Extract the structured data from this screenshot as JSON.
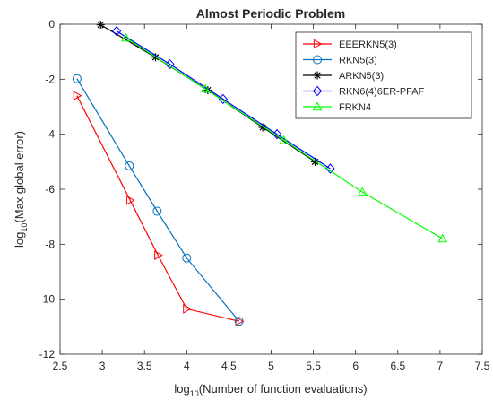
{
  "chart_data": {
    "type": "line",
    "title": "Almost Periodic Problem",
    "xlabel": {
      "prefix": "log",
      "sub": "10",
      "suffix": "(Number of function evaluations)"
    },
    "ylabel": {
      "prefix": "log",
      "sub": "10",
      "suffix": "(Max global error)"
    },
    "xlim": [
      2.5,
      7.5
    ],
    "ylim": [
      -12,
      0
    ],
    "xticks": [
      2.5,
      3,
      3.5,
      4,
      4.5,
      5,
      5.5,
      6,
      6.5,
      7,
      7.5
    ],
    "xtick_labels": [
      "2.5",
      "3",
      "3.5",
      "4",
      "4.5",
      "5",
      "5.5",
      "6",
      "6.5",
      "7",
      "7.5"
    ],
    "yticks": [
      0,
      -2,
      -4,
      -6,
      -8,
      -10,
      -12
    ],
    "ytick_labels": [
      "0",
      "-2",
      "-4",
      "-6",
      "-8",
      "-10",
      "-12"
    ],
    "grid": false,
    "legend_position": "top-right",
    "series": [
      {
        "name": "EEERKN5(3)",
        "color": "#ff0000",
        "marker": "triangle-right",
        "points": [
          [
            2.7,
            -2.6
          ],
          [
            3.33,
            -6.4
          ],
          [
            3.66,
            -8.4
          ],
          [
            4.0,
            -10.35
          ],
          [
            4.62,
            -10.8
          ]
        ]
      },
      {
        "name": "RKN5(3)",
        "color": "#0072bd",
        "marker": "circle",
        "points": [
          [
            2.7,
            -1.98
          ],
          [
            3.32,
            -5.15
          ],
          [
            3.65,
            -6.8
          ],
          [
            4.0,
            -8.5
          ],
          [
            4.62,
            -10.8
          ]
        ]
      },
      {
        "name": "ARKN5(3)",
        "color": "#000000",
        "marker": "asterisk",
        "points": [
          [
            2.98,
            -0.02
          ],
          [
            3.63,
            -1.2
          ],
          [
            4.25,
            -2.4
          ],
          [
            4.9,
            -3.75
          ],
          [
            5.52,
            -5.0
          ]
        ]
      },
      {
        "name": "RKN6(4)6ER-PFAF",
        "color": "#0000ff",
        "marker": "diamond",
        "points": [
          [
            3.17,
            -0.25
          ],
          [
            3.8,
            -1.45
          ],
          [
            4.43,
            -2.72
          ],
          [
            5.07,
            -4.0
          ],
          [
            5.7,
            -5.25
          ]
        ]
      },
      {
        "name": "FRKN4",
        "color": "#00ff00",
        "marker": "triangle-up",
        "points": [
          [
            3.28,
            -0.5
          ],
          [
            4.22,
            -2.35
          ],
          [
            5.15,
            -4.22
          ],
          [
            6.08,
            -6.1
          ],
          [
            7.03,
            -7.8
          ]
        ]
      }
    ]
  }
}
